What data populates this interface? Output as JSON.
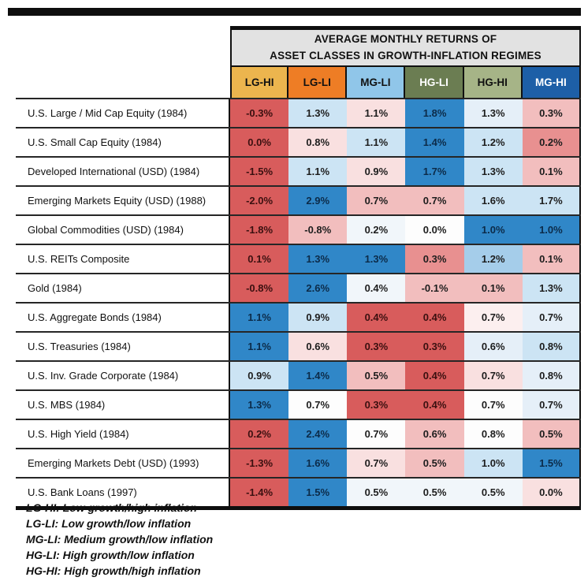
{
  "page": {
    "background": "#FFFFFF"
  },
  "header": {
    "title_line1": "AVERAGE MONTHLY RETURNS OF",
    "title_line2": "ASSET CLASSES IN GROWTH-INFLATION REGIMES",
    "title_bg": "#E2E2E2"
  },
  "columns": [
    {
      "label": "LG-HI",
      "bg": "#ECB54E",
      "fg": "#111111"
    },
    {
      "label": "LG-LI",
      "bg": "#EE7D25",
      "fg": "#111111"
    },
    {
      "label": "MG-LI",
      "bg": "#90C6E9",
      "fg": "#111111"
    },
    {
      "label": "HG-LI",
      "bg": "#6B7D52",
      "fg": "#FFFFFF"
    },
    {
      "label": "HG-HI",
      "bg": "#A6B487",
      "fg": "#111111"
    },
    {
      "label": "MG-HI",
      "bg": "#1D5FA7",
      "fg": "#FFFFFF"
    }
  ],
  "palette": {
    "r4": {
      "bg": "#D85C5C",
      "fg": "#3B1010"
    },
    "r3": {
      "bg": "#E89090",
      "fg": "#1D1D1D"
    },
    "r2": {
      "bg": "#F2BEBE",
      "fg": "#1D1D1D"
    },
    "r1": {
      "bg": "#F9E0E0",
      "fg": "#1D1D1D"
    },
    "r0": {
      "bg": "#FCEFEF",
      "fg": "#1D1D1D"
    },
    "w": {
      "bg": "#FDFDFD",
      "fg": "#1D1D1D"
    },
    "b0": {
      "bg": "#F1F6FA",
      "fg": "#1D1D1D"
    },
    "b1": {
      "bg": "#E5EFF8",
      "fg": "#1D1D1D"
    },
    "b2": {
      "bg": "#CCE4F4",
      "fg": "#1D1D1D"
    },
    "b3": {
      "bg": "#A5CDEA",
      "fg": "#1D1D1D"
    },
    "b4": {
      "bg": "#3087C8",
      "fg": "#0C2B49"
    }
  },
  "cell_colors": [
    [
      "r4",
      "b2",
      "r1",
      "b4",
      "b1",
      "r2"
    ],
    [
      "r4",
      "r1",
      "b2",
      "b4",
      "b2",
      "r3"
    ],
    [
      "r4",
      "b2",
      "r1",
      "b4",
      "b2",
      "r2"
    ],
    [
      "r4",
      "b4",
      "r2",
      "r2",
      "b2",
      "b2"
    ],
    [
      "r4",
      "r2",
      "b0",
      "w",
      "b4",
      "b4"
    ],
    [
      "r4",
      "b4",
      "b4",
      "r3",
      "b3",
      "r2"
    ],
    [
      "r4",
      "b4",
      "b0",
      "r2",
      "r2",
      "b2"
    ],
    [
      "b4",
      "b2",
      "r4",
      "r4",
      "r0",
      "b1"
    ],
    [
      "b4",
      "r1",
      "r4",
      "r4",
      "b1",
      "b2"
    ],
    [
      "b2",
      "b4",
      "r2",
      "r4",
      "r1",
      "b1"
    ],
    [
      "b4",
      "w",
      "r4",
      "r4",
      "w",
      "b1"
    ],
    [
      "r4",
      "b4",
      "w",
      "r2",
      "w",
      "r2"
    ],
    [
      "r4",
      "b4",
      "r1",
      "r2",
      "b2",
      "b4"
    ],
    [
      "r4",
      "b4",
      "b0",
      "b0",
      "b0",
      "r1"
    ]
  ],
  "legend": {
    "lines": [
      "LG-HI: Low growth/high inflation",
      "LG-LI: Low growth/low inflation",
      "MG-LI: Medium growth/low inflation",
      "HG-LI: High growth/low inflation",
      "HG-HI: High growth/high inflation"
    ]
  },
  "chart_data": {
    "type": "heatmap",
    "title": "AVERAGE MONTHLY RETURNS OF ASSET CLASSES IN GROWTH-INFLATION REGIMES",
    "columns": [
      "LG-HI",
      "LG-LI",
      "MG-LI",
      "HG-LI",
      "HG-HI",
      "MG-HI"
    ],
    "rows": [
      "U.S. Large / Mid Cap Equity (1984)",
      "U.S. Small Cap Equity (1984)",
      "Developed International (USD) (1984)",
      "Emerging Markets Equity (USD) (1988)",
      "Global Commodities (USD) (1984)",
      "U.S. REITs Composite",
      "Gold (1984)",
      "U.S. Aggregate Bonds (1984)",
      "U.S. Treasuries (1984)",
      "U.S. Inv. Grade Corporate (1984)",
      "U.S. MBS (1984)",
      "U.S. High Yield (1984)",
      "Emerging Markets Debt (USD) (1993)",
      "U.S. Bank Loans (1997)"
    ],
    "values_pct": [
      [
        -0.3,
        1.3,
        1.1,
        1.8,
        1.3,
        0.3
      ],
      [
        0.0,
        0.8,
        1.1,
        1.4,
        1.2,
        0.2
      ],
      [
        -1.5,
        1.1,
        0.9,
        1.7,
        1.3,
        0.1
      ],
      [
        -2.0,
        2.9,
        0.7,
        0.7,
        1.6,
        1.7
      ],
      [
        -1.8,
        -0.8,
        0.2,
        0.0,
        1.0,
        1.0
      ],
      [
        0.1,
        1.3,
        1.3,
        0.3,
        1.2,
        0.1
      ],
      [
        -0.8,
        2.6,
        0.4,
        -0.1,
        0.1,
        1.3
      ],
      [
        1.1,
        0.9,
        0.4,
        0.4,
        0.7,
        0.7
      ],
      [
        1.1,
        0.6,
        0.3,
        0.3,
        0.6,
        0.8
      ],
      [
        0.9,
        1.4,
        0.5,
        0.4,
        0.7,
        0.8
      ],
      [
        1.3,
        0.7,
        0.3,
        0.4,
        0.7,
        0.7
      ],
      [
        0.2,
        2.4,
        0.7,
        0.6,
        0.8,
        0.5
      ],
      [
        -1.3,
        1.6,
        0.7,
        0.5,
        1.0,
        1.5
      ],
      [
        -1.4,
        1.5,
        0.5,
        0.5,
        0.5,
        0.0
      ]
    ],
    "value_format": "percent, 1 decimal",
    "color_meaning": "red = lower relative return, blue = higher relative return"
  }
}
